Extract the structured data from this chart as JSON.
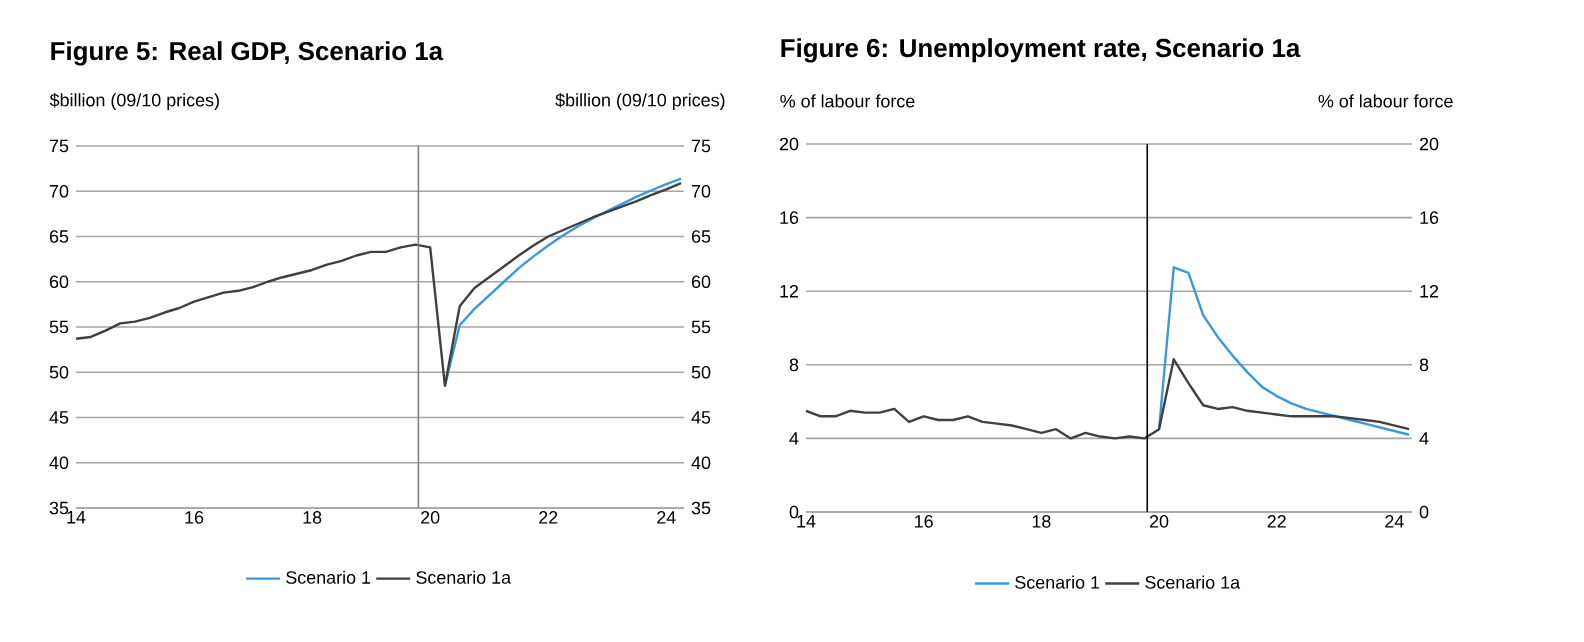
{
  "chart_data": [
    {
      "type": "line",
      "title": "Figure 5: Real GDP, Scenario 1a",
      "ylabel": "$billion (09/10 prices)",
      "y2label": "$billion (09/10 prices)",
      "xlim": [
        14,
        24.3
      ],
      "xticks": [
        14,
        16,
        18,
        20,
        22,
        24
      ],
      "ylim": [
        35,
        75
      ],
      "yticks": [
        35,
        40,
        45,
        50,
        55,
        60,
        65,
        70,
        75
      ],
      "y2lim": [
        35,
        75
      ],
      "y2ticks": [
        35,
        40,
        45,
        50,
        55,
        60,
        65,
        70,
        75
      ],
      "grid": "y",
      "legend": "bottom",
      "marker": "none",
      "line_style": "solid",
      "ref_lines": [
        {
          "axis": "x",
          "value": 19.8,
          "color": "#808080"
        }
      ],
      "series": [
        {
          "name": "Scenario 1",
          "color": "#3a9ad9",
          "x": [
            20.25,
            20.5,
            20.75,
            21.0,
            21.25,
            21.5,
            21.75,
            22.0,
            22.25,
            22.5,
            22.75,
            23.0,
            23.25,
            23.5,
            23.75,
            24.0,
            24.25
          ],
          "values": [
            48.5,
            55.2,
            57.0,
            58.5,
            60.0,
            61.5,
            62.8,
            64.0,
            65.1,
            66.1,
            67.0,
            67.8,
            68.6,
            69.4,
            70.1,
            70.8,
            71.4
          ]
        },
        {
          "name": "Scenario 1a",
          "color": "#404040",
          "x": [
            14.0,
            14.25,
            14.5,
            14.75,
            15.0,
            15.25,
            15.5,
            15.75,
            16.0,
            16.25,
            16.5,
            16.75,
            17.0,
            17.25,
            17.5,
            17.75,
            18.0,
            18.25,
            18.5,
            18.75,
            19.0,
            19.25,
            19.5,
            19.75,
            20.0,
            20.25,
            20.5,
            20.75,
            21.0,
            21.25,
            21.5,
            21.75,
            22.0,
            22.25,
            22.5,
            22.75,
            23.0,
            23.25,
            23.5,
            23.75,
            24.0,
            24.25
          ],
          "values": [
            53.7,
            53.9,
            54.6,
            55.4,
            55.6,
            56.0,
            56.6,
            57.1,
            57.8,
            58.3,
            58.8,
            59.0,
            59.4,
            60.0,
            60.5,
            60.9,
            61.3,
            61.9,
            62.3,
            62.9,
            63.3,
            63.3,
            63.8,
            64.1,
            63.8,
            48.5,
            57.3,
            59.3,
            60.5,
            61.7,
            62.9,
            64.0,
            65.0,
            65.7,
            66.4,
            67.1,
            67.7,
            68.3,
            68.9,
            69.6,
            70.2,
            70.9
          ]
        }
      ]
    },
    {
      "type": "line",
      "title": "Figure 6: Unemployment rate, Scenario 1a",
      "ylabel": "% of labour force",
      "y2label": "% of labour force",
      "xlim": [
        14,
        24.3
      ],
      "xticks": [
        14,
        16,
        18,
        20,
        22,
        24
      ],
      "ylim": [
        0,
        20
      ],
      "yticks": [
        0,
        4,
        8,
        12,
        16,
        20
      ],
      "y2lim": [
        0,
        20
      ],
      "y2ticks": [
        0,
        4,
        8,
        12,
        16,
        20
      ],
      "grid": "y",
      "legend": "bottom",
      "marker": "none",
      "line_style": "solid",
      "ref_lines": [
        {
          "axis": "x",
          "value": 19.8,
          "color": "#000000"
        }
      ],
      "series": [
        {
          "name": "Scenario 1",
          "color": "#3a9ad9",
          "x": [
            20.0,
            20.25,
            20.5,
            20.75,
            21.0,
            21.25,
            21.5,
            21.75,
            22.0,
            22.25,
            22.5,
            22.75,
            23.0,
            23.25,
            23.5,
            23.75,
            24.0,
            24.25
          ],
          "values": [
            4.5,
            13.3,
            13.0,
            10.7,
            9.5,
            8.5,
            7.6,
            6.8,
            6.3,
            5.9,
            5.6,
            5.4,
            5.2,
            5.0,
            4.8,
            4.6,
            4.4,
            4.2
          ]
        },
        {
          "name": "Scenario 1a",
          "color": "#404040",
          "x": [
            14.0,
            14.25,
            14.5,
            14.75,
            15.0,
            15.25,
            15.5,
            15.75,
            16.0,
            16.25,
            16.5,
            16.75,
            17.0,
            17.25,
            17.5,
            17.75,
            18.0,
            18.25,
            18.5,
            18.75,
            19.0,
            19.25,
            19.5,
            19.75,
            20.0,
            20.25,
            20.5,
            20.75,
            21.0,
            21.25,
            21.5,
            21.75,
            22.0,
            22.25,
            22.5,
            22.75,
            23.0,
            23.25,
            23.5,
            23.75,
            24.0,
            24.25
          ],
          "values": [
            5.5,
            5.2,
            5.2,
            5.5,
            5.4,
            5.4,
            5.6,
            4.9,
            5.2,
            5.0,
            5.0,
            5.2,
            4.9,
            4.8,
            4.7,
            4.5,
            4.3,
            4.5,
            4.0,
            4.3,
            4.1,
            4.0,
            4.1,
            4.0,
            4.5,
            8.3,
            7.0,
            5.8,
            5.6,
            5.7,
            5.5,
            5.4,
            5.3,
            5.2,
            5.2,
            5.2,
            5.2,
            5.1,
            5.0,
            4.9,
            4.7,
            4.5
          ]
        }
      ]
    }
  ]
}
